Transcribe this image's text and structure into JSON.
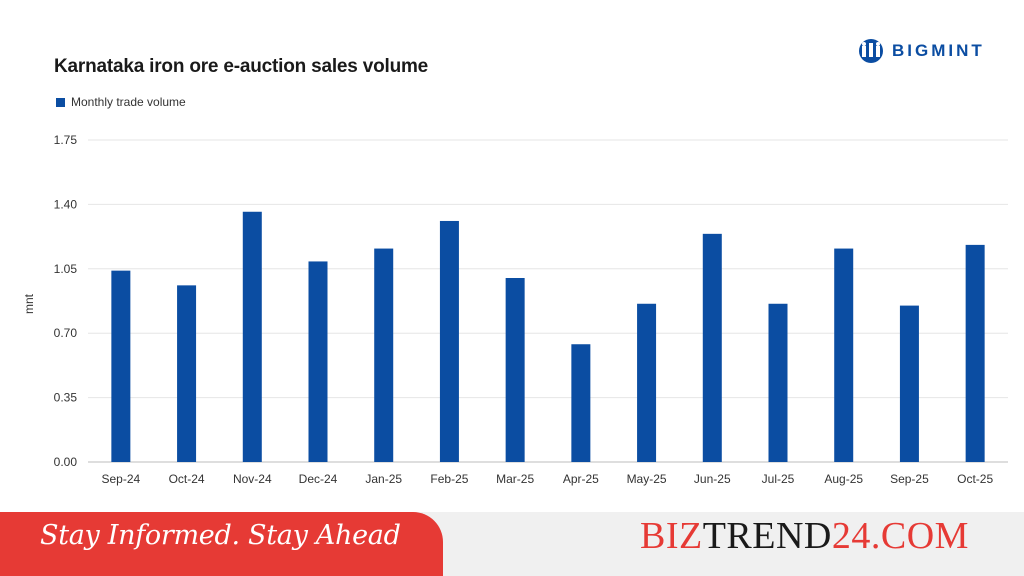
{
  "logo": {
    "text": "BIGMINT",
    "color": "#0b4da2"
  },
  "chart_data": {
    "type": "bar",
    "title": "Karnataka iron ore e-auction sales volume",
    "ylabel": "mnt",
    "xlabel": "",
    "ylim": [
      0,
      1.75
    ],
    "yticks": [
      "0.00",
      "0.35",
      "0.70",
      "1.05",
      "1.40",
      "1.75"
    ],
    "grid": true,
    "legend_position": "top-left",
    "bar_color": "#0b4da2",
    "categories": [
      "Sep-24",
      "Oct-24",
      "Nov-24",
      "Dec-24",
      "Jan-25",
      "Feb-25",
      "Mar-25",
      "Apr-25",
      "May-25",
      "Jun-25",
      "Jul-25",
      "Aug-25",
      "Sep-25",
      "Oct-25"
    ],
    "series": [
      {
        "name": "Monthly trade volume",
        "values": [
          1.04,
          0.96,
          1.36,
          1.09,
          1.16,
          1.31,
          1.0,
          0.64,
          0.86,
          1.24,
          0.86,
          1.16,
          0.85,
          1.18
        ]
      }
    ]
  },
  "footer": {
    "tagline": "Stay Informed. Stay Ahead",
    "site_part1": "BIZ",
    "site_part2": "TREND",
    "site_part3": "24.COM",
    "red": "#e63a35",
    "dark": "#1a1a1a"
  }
}
